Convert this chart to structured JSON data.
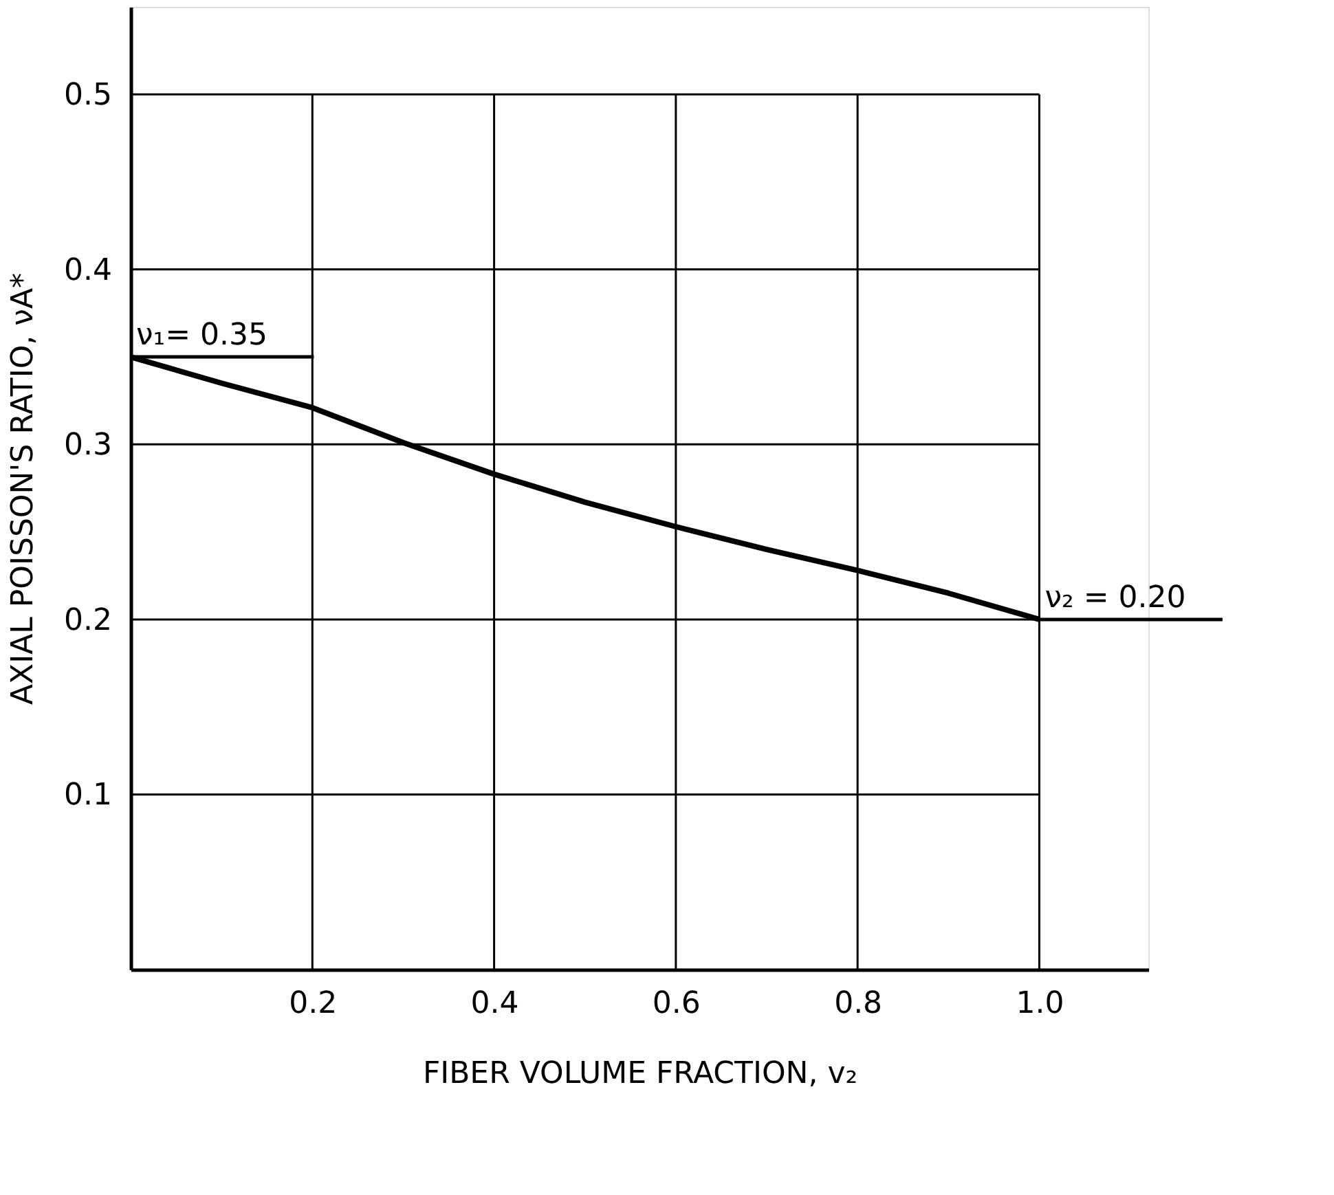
{
  "chart_data": {
    "type": "line",
    "xlabel": "FIBER VOLUME FRACTION, v₂",
    "ylabel": "AXIAL POISSON'S RATIO, νA*",
    "x": [
      0,
      0.1,
      0.2,
      0.3,
      0.4,
      0.5,
      0.6,
      0.7,
      0.8,
      0.9,
      1.0
    ],
    "series": [
      {
        "color": "#000000",
        "values": [
          0.35,
          0.335,
          0.321,
          0.301,
          0.283,
          0.267,
          0.253,
          0.24,
          0.228,
          0.215,
          0.2
        ]
      }
    ],
    "xlim": [
      0,
      1.12
    ],
    "ylim": [
      0,
      0.55
    ],
    "xticks": [
      0.2,
      0.4,
      0.6,
      0.8,
      {
        "value": 1.0,
        "label": "1.0"
      }
    ],
    "yticks": [
      0.1,
      0.2,
      0.3,
      0.4,
      0.5
    ],
    "grid": true,
    "marker": "none",
    "line_style": "solid",
    "annotations": [
      {
        "text": "ν₁= 0.35",
        "x": 0,
        "y": 0.35
      },
      {
        "text": "ν₂ = 0.20",
        "x": 1.0,
        "y": 0.2
      }
    ]
  }
}
